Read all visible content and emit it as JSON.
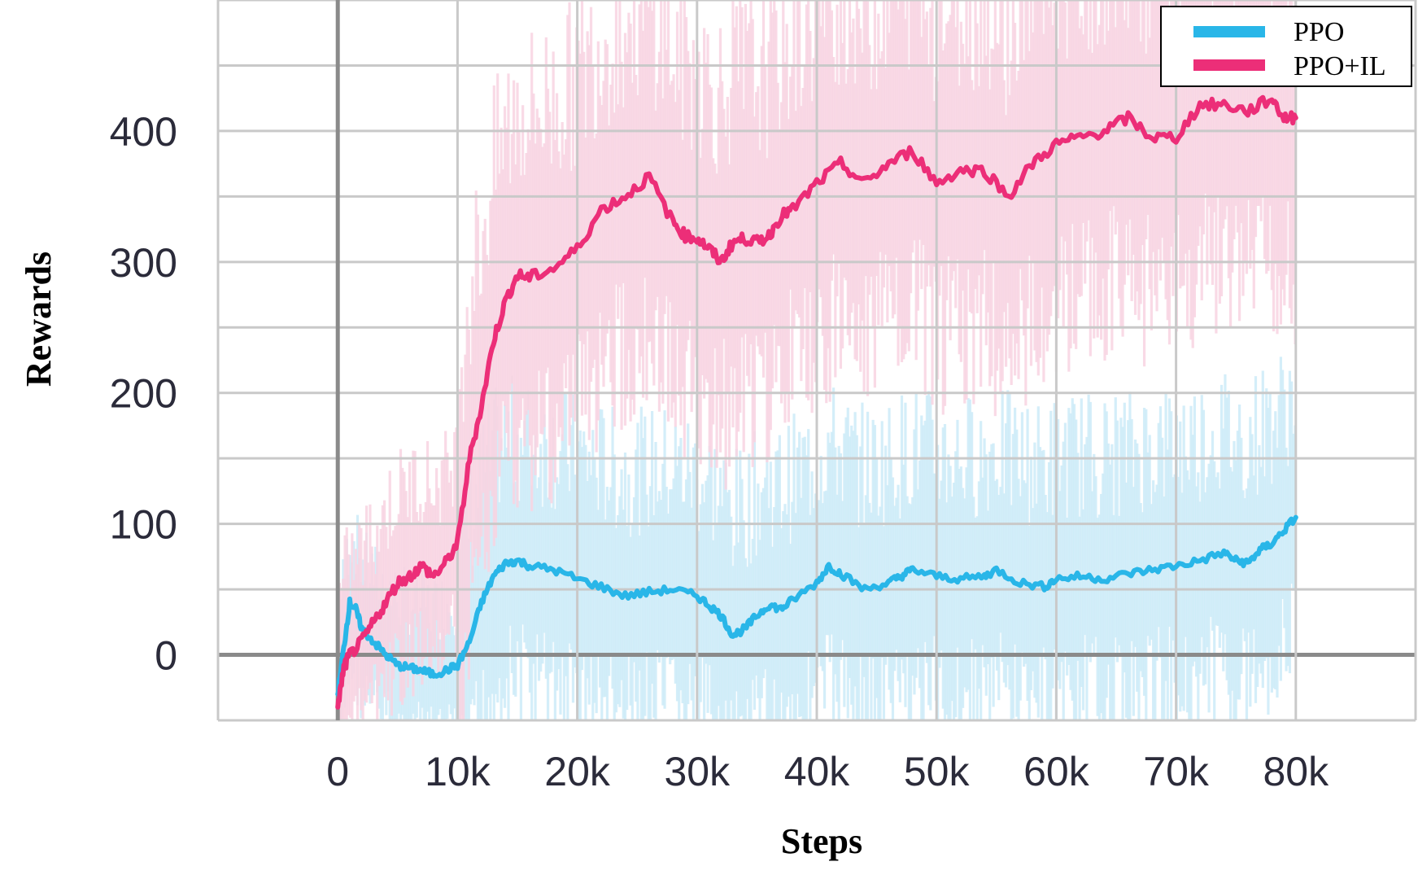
{
  "chart_data": {
    "type": "line",
    "xlabel": "Steps",
    "ylabel": "Rewards",
    "x_ticks": [
      {
        "value": 0,
        "label": "0"
      },
      {
        "value": 10000,
        "label": "10k"
      },
      {
        "value": 20000,
        "label": "20k"
      },
      {
        "value": 30000,
        "label": "30k"
      },
      {
        "value": 40000,
        "label": "40k"
      },
      {
        "value": 50000,
        "label": "50k"
      },
      {
        "value": 60000,
        "label": "60k"
      },
      {
        "value": 70000,
        "label": "70k"
      },
      {
        "value": 80000,
        "label": "80k"
      }
    ],
    "y_ticks": [
      {
        "value": 0,
        "label": "0"
      },
      {
        "value": 100,
        "label": "100"
      },
      {
        "value": 200,
        "label": "200"
      },
      {
        "value": 300,
        "label": "300"
      },
      {
        "value": 400,
        "label": "400"
      }
    ],
    "xlim": [
      -10000,
      90000
    ],
    "ylim": [
      -50,
      500
    ],
    "grid": true,
    "legend_position": "top-right",
    "series": [
      {
        "name": "PPO",
        "color": "#29b6e8",
        "band_color": "#cdebf8",
        "x": [
          0,
          500,
          1000,
          1500,
          2000,
          3000,
          4000,
          5000,
          6000,
          7000,
          8000,
          9000,
          10000,
          11000,
          12000,
          13000,
          14000,
          15000,
          16000,
          18000,
          20000,
          22000,
          24000,
          26000,
          28000,
          30000,
          31000,
          32000,
          33000,
          34000,
          35000,
          36000,
          37000,
          38000,
          40000,
          41000,
          42000,
          44000,
          46000,
          47000,
          48000,
          50000,
          52000,
          54000,
          55000,
          57000,
          59000,
          60000,
          62000,
          64000,
          66000,
          68000,
          70000,
          72000,
          74000,
          75000,
          76000,
          77000,
          78000,
          79000,
          80000
        ],
        "y": [
          -30,
          5,
          40,
          35,
          20,
          10,
          0,
          -8,
          -10,
          -12,
          -15,
          -12,
          -8,
          10,
          40,
          60,
          70,
          72,
          68,
          65,
          58,
          52,
          45,
          48,
          50,
          45,
          38,
          30,
          15,
          20,
          30,
          38,
          35,
          42,
          55,
          68,
          62,
          50,
          55,
          60,
          65,
          60,
          58,
          60,
          65,
          55,
          52,
          58,
          60,
          58,
          62,
          65,
          68,
          72,
          78,
          72,
          70,
          80,
          85,
          95,
          105
        ]
      },
      {
        "name": "PPO+IL",
        "color": "#ec2e78",
        "band_color": "#f8d3e2",
        "x": [
          0,
          500,
          1000,
          2000,
          3000,
          4000,
          5000,
          6000,
          7000,
          8000,
          9000,
          10000,
          11000,
          12000,
          13000,
          14000,
          15000,
          16000,
          18000,
          20000,
          22000,
          24000,
          26000,
          28000,
          29000,
          30000,
          31000,
          32000,
          33000,
          34000,
          35000,
          36000,
          37000,
          38000,
          40000,
          42000,
          44000,
          46000,
          48000,
          50000,
          52000,
          54000,
          56000,
          58000,
          60000,
          62000,
          64000,
          66000,
          68000,
          70000,
          72000,
          74000,
          76000,
          78000,
          79000,
          80000
        ],
        "y": [
          -40,
          -10,
          0,
          10,
          25,
          40,
          55,
          60,
          68,
          60,
          70,
          85,
          150,
          190,
          240,
          270,
          290,
          288,
          295,
          310,
          340,
          350,
          365,
          330,
          320,
          318,
          310,
          300,
          315,
          318,
          315,
          320,
          335,
          340,
          360,
          375,
          360,
          375,
          385,
          360,
          370,
          370,
          350,
          375,
          390,
          395,
          400,
          410,
          395,
          395,
          420,
          420,
          415,
          425,
          410,
          410
        ]
      }
    ]
  }
}
